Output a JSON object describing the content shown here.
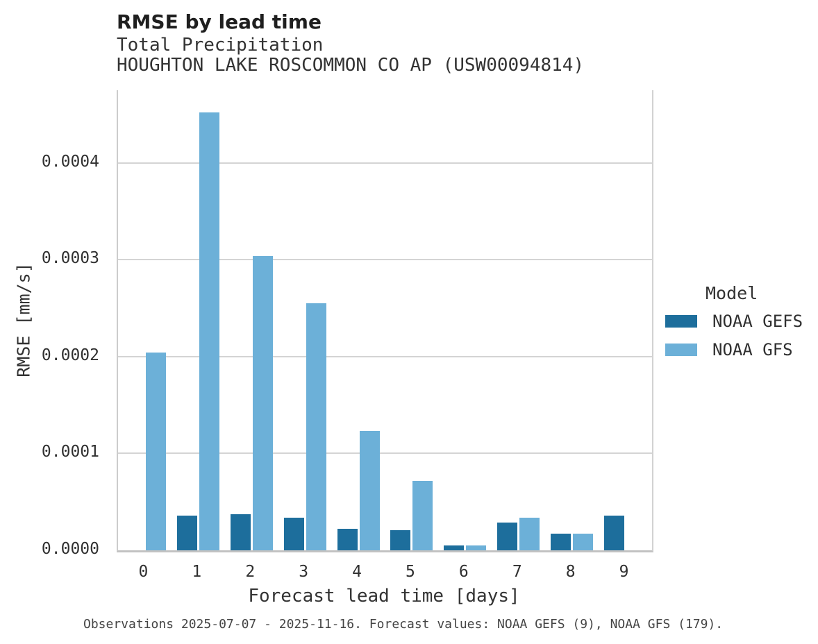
{
  "header": {
    "title": "RMSE by lead time",
    "subtitle": "Total Precipitation",
    "station": "HOUGHTON LAKE ROSCOMMON CO AP (USW00094814)"
  },
  "chart_data": {
    "type": "bar",
    "title": "RMSE by lead time",
    "xlabel": "Forecast lead time [days]",
    "ylabel": "RMSE [mm/s]",
    "categories": [
      0,
      1,
      2,
      3,
      4,
      5,
      6,
      7,
      8,
      9
    ],
    "xtick_labels": [
      "0",
      "1",
      "2",
      "3",
      "4",
      "5",
      "6",
      "7",
      "8",
      "9"
    ],
    "series": [
      {
        "name": "NOAA GEFS",
        "color": "#1d6e9c",
        "values": [
          null,
          3.6e-05,
          3.7e-05,
          3.4e-05,
          2.2e-05,
          2.1e-05,
          5e-06,
          2.9e-05,
          1.7e-05,
          3.6e-05
        ]
      },
      {
        "name": "NOAA GFS",
        "color": "#6cb0d8",
        "values": [
          0.000204,
          0.000452,
          0.000304,
          0.000255,
          0.000123,
          7.2e-05,
          5e-06,
          3.4e-05,
          1.7e-05,
          null
        ]
      }
    ],
    "ylim": [
      0,
      0.000475
    ],
    "yticks": [
      0.0,
      0.0001,
      0.0002,
      0.0003,
      0.0004
    ],
    "ytick_labels": [
      "0.0000",
      "0.0001",
      "0.0002",
      "0.0003",
      "0.0004"
    ],
    "grid": true,
    "legend_title": "Model",
    "legend_position": "right"
  },
  "legend": {
    "title": "Model",
    "items": [
      {
        "label": "NOAA GEFS",
        "color": "#1d6e9c"
      },
      {
        "label": "NOAA GFS",
        "color": "#6cb0d8"
      }
    ]
  },
  "footer": {
    "caption": "Observations 2025-07-07 - 2025-11-16. Forecast values: NOAA GEFS (9), NOAA GFS (179)."
  }
}
